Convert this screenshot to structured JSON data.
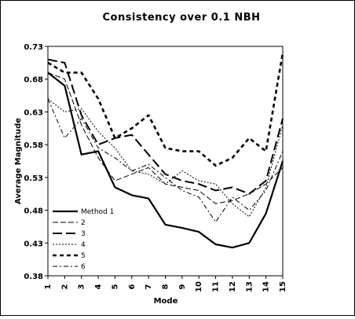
{
  "chart_data": {
    "type": "line",
    "title": "Consistency over 0.1 NBH",
    "xlabel": "Mode",
    "ylabel": "Average Magnitude",
    "x": [
      1,
      2,
      3,
      4,
      5,
      6,
      7,
      8,
      9,
      10,
      11,
      12,
      13,
      14,
      15
    ],
    "xlim": [
      1,
      15
    ],
    "ylim": [
      0.38,
      0.73
    ],
    "y_ticks": [
      "0.38",
      "0.43",
      "0.48",
      "0.53",
      "0.58",
      "0.63",
      "0.68",
      "0.73"
    ],
    "x_ticks": [
      "1",
      "2",
      "3",
      "4",
      "5",
      "6",
      "7",
      "8",
      "9",
      "10",
      "11",
      "12",
      "13",
      "14",
      "15"
    ],
    "grid": false,
    "legend_position": "lower-left",
    "series": [
      {
        "name": "Method 1",
        "style": "solid-thick",
        "values": [
          0.69,
          0.67,
          0.565,
          0.57,
          0.515,
          0.503,
          0.498,
          0.458,
          0.453,
          0.447,
          0.428,
          0.423,
          0.43,
          0.475,
          0.555
        ]
      },
      {
        "name": "2",
        "style": "dash-thin",
        "values": [
          0.69,
          0.68,
          0.61,
          0.56,
          0.525,
          0.535,
          0.545,
          0.52,
          0.515,
          0.51,
          0.49,
          0.495,
          0.505,
          0.52,
          0.545
        ]
      },
      {
        "name": "3",
        "style": "dash-thick",
        "values": [
          0.71,
          0.705,
          0.625,
          0.58,
          0.59,
          0.595,
          0.565,
          0.535,
          0.525,
          0.52,
          0.51,
          0.515,
          0.505,
          0.525,
          0.62
        ]
      },
      {
        "name": "4",
        "style": "dot",
        "values": [
          0.65,
          0.63,
          0.635,
          0.6,
          0.575,
          0.54,
          0.535,
          0.52,
          0.54,
          0.525,
          0.52,
          0.49,
          0.47,
          0.515,
          0.61
        ]
      },
      {
        "name": "5",
        "style": "dash-heavy",
        "values": [
          0.705,
          0.69,
          0.69,
          0.65,
          0.59,
          0.605,
          0.625,
          0.575,
          0.57,
          0.57,
          0.548,
          0.56,
          0.59,
          0.57,
          0.72
        ]
      },
      {
        "name": "6",
        "style": "dashdot",
        "values": [
          0.65,
          0.59,
          0.62,
          0.575,
          0.56,
          0.54,
          0.55,
          0.53,
          0.51,
          0.5,
          0.462,
          0.5,
          0.48,
          0.51,
          0.57
        ]
      }
    ]
  }
}
